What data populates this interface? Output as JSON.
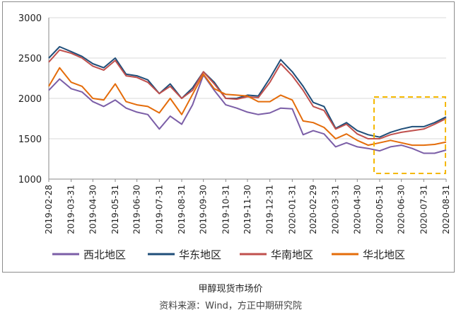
{
  "chart_data": {
    "type": "line",
    "title": "甲醇现货市场价",
    "source": "资料来源：Wind，方正中期研究院",
    "ylim": [
      1000,
      3000
    ],
    "yticks": [
      1000,
      1500,
      2000,
      2500,
      3000
    ],
    "xticks": [
      "2019-02-28",
      "2019-03-31",
      "2019-04-30",
      "2019-05-31",
      "2019-06-30",
      "2019-07-31",
      "2019-08-31",
      "2019-09-30",
      "2019-10-31",
      "2019-11-30",
      "2019-12-31",
      "2020-01-31",
      "2020-02-29",
      "2020-03-31",
      "2020-04-30",
      "2020-05-31",
      "2020-06-30",
      "2020-07-31",
      "2020-08-31"
    ],
    "x": [
      "2019-02-28",
      "2019-03-15",
      "2019-03-31",
      "2019-04-15",
      "2019-04-30",
      "2019-05-15",
      "2019-05-31",
      "2019-06-15",
      "2019-06-30",
      "2019-07-15",
      "2019-07-31",
      "2019-08-15",
      "2019-08-31",
      "2019-09-15",
      "2019-09-30",
      "2019-10-15",
      "2019-10-31",
      "2019-11-15",
      "2019-11-30",
      "2019-12-15",
      "2019-12-31",
      "2020-01-15",
      "2020-01-31",
      "2020-02-15",
      "2020-02-29",
      "2020-03-15",
      "2020-03-31",
      "2020-04-15",
      "2020-04-30",
      "2020-05-15",
      "2020-05-31",
      "2020-06-15",
      "2020-06-30",
      "2020-07-15",
      "2020-07-31",
      "2020-08-15",
      "2020-08-31"
    ],
    "series": [
      {
        "name": "西北地区",
        "color": "#7b5ea7",
        "values": [
          2100,
          2240,
          2120,
          2080,
          1960,
          1900,
          1980,
          1880,
          1830,
          1800,
          1620,
          1780,
          1680,
          1920,
          2290,
          2100,
          1920,
          1880,
          1830,
          1800,
          1820,
          1880,
          1870,
          1550,
          1600,
          1560,
          1400,
          1450,
          1400,
          1380,
          1350,
          1400,
          1420,
          1380,
          1320,
          1320,
          1360
        ]
      },
      {
        "name": "华东地区",
        "color": "#1f4e79",
        "values": [
          2500,
          2640,
          2580,
          2520,
          2430,
          2380,
          2500,
          2300,
          2280,
          2230,
          2060,
          2180,
          2000,
          2130,
          2330,
          2200,
          2000,
          2000,
          2040,
          2030,
          2250,
          2480,
          2330,
          2150,
          1950,
          1900,
          1630,
          1700,
          1600,
          1550,
          1520,
          1580,
          1620,
          1650,
          1650,
          1700,
          1770
        ]
      },
      {
        "name": "华南地区",
        "color": "#c0504d",
        "values": [
          2450,
          2600,
          2560,
          2500,
          2400,
          2350,
          2470,
          2280,
          2260,
          2200,
          2060,
          2150,
          2000,
          2100,
          2330,
          2180,
          2000,
          1990,
          2020,
          2010,
          2200,
          2430,
          2280,
          2100,
          1900,
          1850,
          1620,
          1680,
          1560,
          1500,
          1500,
          1550,
          1580,
          1600,
          1620,
          1680,
          1750
        ]
      },
      {
        "name": "华北地区",
        "color": "#e46c0a",
        "values": [
          2150,
          2380,
          2200,
          2150,
          2000,
          1980,
          2180,
          1960,
          1920,
          1900,
          1820,
          2000,
          1800,
          2050,
          2300,
          2120,
          2050,
          2040,
          2030,
          1960,
          1960,
          2040,
          1980,
          1720,
          1700,
          1640,
          1500,
          1560,
          1480,
          1420,
          1450,
          1480,
          1450,
          1420,
          1420,
          1430,
          1460
        ]
      }
    ]
  }
}
